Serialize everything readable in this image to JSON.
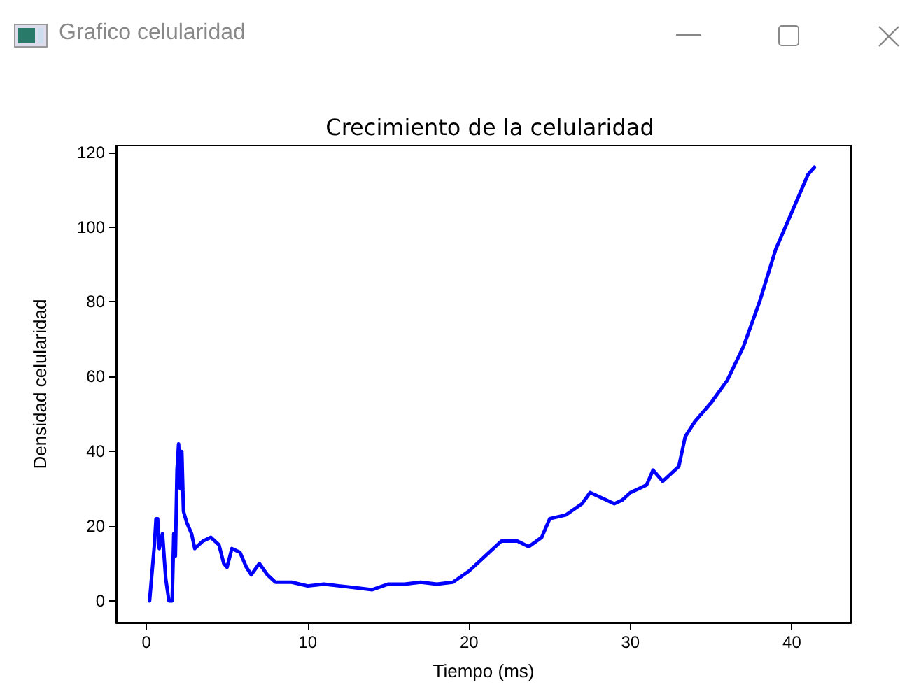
{
  "chart_data": {
    "type": "line",
    "title": "Crecimiento de la celularidad",
    "xlabel": "Tiempo (ms)",
    "ylabel": "Densidad celularidad",
    "annotations": [
      "Grafico celularidad"
    ],
    "x": [
      0.2,
      0.3,
      0.5,
      0.6,
      0.7,
      0.8,
      1.0,
      1.2,
      1.4,
      1.6,
      1.7,
      1.8,
      1.9,
      2.0,
      2.1,
      2.2,
      2.3,
      2.5,
      2.8,
      3.0,
      3.5,
      4.0,
      4.5,
      4.8,
      5.0,
      5.3,
      5.8,
      6.2,
      6.5,
      7.0,
      7.5,
      8.0,
      9,
      10,
      11,
      12,
      13,
      14,
      15,
      16,
      17,
      18,
      19,
      20,
      21,
      22,
      23,
      23.7,
      24.5,
      25,
      26,
      27,
      27.5,
      28,
      29,
      29.5,
      30,
      31,
      31.4,
      32,
      33,
      33.4,
      34,
      35,
      36,
      37,
      38,
      39,
      40,
      41,
      41.4
    ],
    "series": [
      {
        "color": "#0000ff",
        "values": [
          0,
          5,
          15,
          22,
          22,
          14,
          18,
          6,
          0,
          0,
          18,
          12,
          35,
          42,
          30,
          40,
          24,
          21,
          18,
          14,
          16,
          17,
          15,
          10,
          9,
          14,
          13,
          9,
          7,
          10,
          7,
          5,
          5,
          4,
          4.5,
          4,
          3.5,
          3,
          4.5,
          4.5,
          5,
          4.5,
          5,
          8,
          12,
          16,
          16,
          14.5,
          17,
          22,
          23,
          26,
          29,
          28,
          26,
          27,
          29,
          31,
          35,
          32,
          36,
          44,
          48,
          53,
          59,
          68,
          80,
          94,
          104,
          114,
          116
        ]
      }
    ],
    "xlim": [
      -1.87,
      43.67
    ],
    "ylim": [
      -5.8,
      121.8
    ],
    "xticks": [
      0,
      10,
      20,
      30,
      40
    ],
    "yticks": [
      0,
      20,
      40,
      60,
      80,
      100,
      120
    ],
    "marker": "none",
    "line_style": "solid"
  }
}
